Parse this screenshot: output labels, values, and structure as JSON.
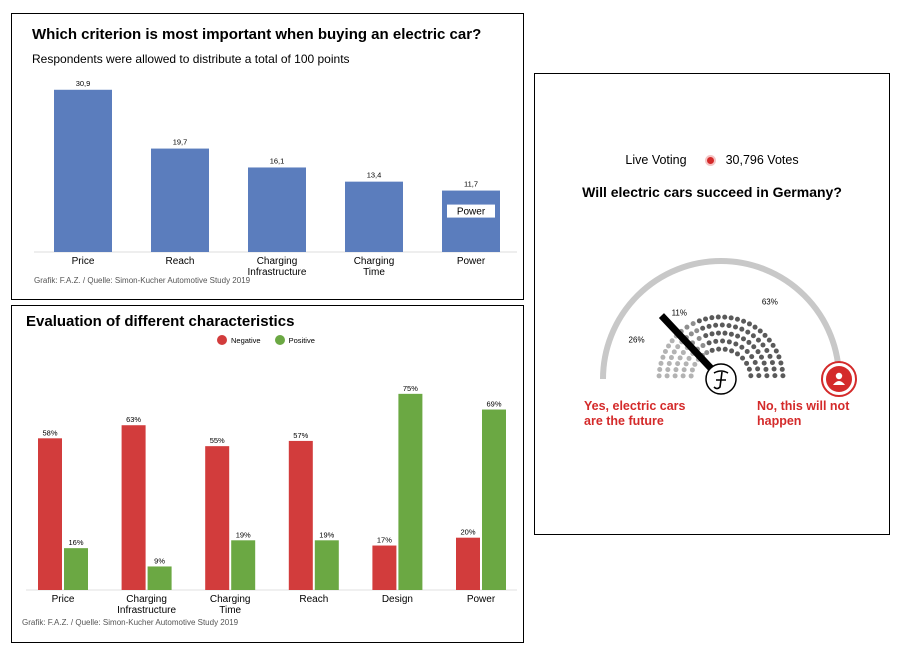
{
  "chart_data": [
    {
      "type": "bar",
      "title": "Which criterion is most important when buying an electric car?",
      "subtitle": "Respondents were allowed to distribute a total of 100 points",
      "categories": [
        "Price",
        "Reach",
        "Charging\nInfrastructure",
        "Charging\nTime",
        "Power"
      ],
      "values": [
        30.9,
        19.7,
        16.1,
        13.4,
        11.7
      ],
      "value_labels": [
        "30,9",
        "19,7",
        "16,1",
        "13,4",
        "11,7"
      ],
      "bar_annotation": {
        "index": 4,
        "text": "Power"
      },
      "color": "#5b7dbd",
      "credit": "Grafik: F.A.Z. / Quelle: Simon-Kucher Automotive Study 2019",
      "ylim": [
        0,
        32
      ]
    },
    {
      "type": "bar",
      "title": "Evaluation of different characteristics",
      "categories": [
        "Price",
        "Charging\nInfrastructure",
        "Charging\nTime",
        "Reach",
        "Design",
        "Power"
      ],
      "series": [
        {
          "name": "Negative",
          "color": "#d23c3c",
          "values": [
            58,
            63,
            55,
            57,
            17,
            20
          ],
          "labels": [
            "58%",
            "63%",
            "55%",
            "57%",
            "17%",
            "20%"
          ]
        },
        {
          "name": "Positive",
          "color": "#6ba843",
          "values": [
            16,
            9,
            19,
            19,
            75,
            69
          ],
          "labels": [
            "16%",
            "9%",
            "19%",
            "19%",
            "75%",
            "69%"
          ]
        }
      ],
      "legend": "top-center",
      "credit": "Grafik: F.A.Z. / Quelle: Simon-Kucher Automotive Study 2019",
      "ylim": [
        0,
        78
      ]
    },
    {
      "type": "gauge",
      "header": {
        "label": "Live Voting",
        "votes": "30,796 Votes"
      },
      "title": "Will electric cars succeed in Germany?",
      "segments": [
        {
          "label": "26%",
          "value": 26,
          "color": "#b3b3b3"
        },
        {
          "label": "11%",
          "value": 11,
          "color": "#8e8e8e"
        },
        {
          "label": "63%",
          "value": 63,
          "color": "#5a5a5a"
        }
      ],
      "needle_value": 26,
      "left_option": "Yes, electric cars\nare the future",
      "right_option": "No, this will not\nhappen",
      "colors": {
        "accent": "#d42a2a",
        "arc": "#c8c8c8"
      },
      "icons": [
        "faz-logo-icon",
        "user-icon"
      ]
    }
  ]
}
